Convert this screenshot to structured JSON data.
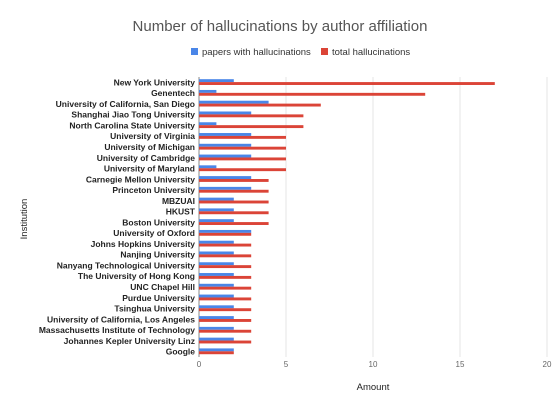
{
  "chart_data": {
    "type": "bar",
    "orientation": "horizontal",
    "title": "Number of hallucinations by author affiliation",
    "xlabel": "Amount",
    "ylabel": "Institution",
    "xlim": [
      0,
      20
    ],
    "xticks": [
      "0",
      "5",
      "10",
      "15",
      "20"
    ],
    "grid": true,
    "legend_position": "top",
    "categories": [
      "New York University",
      "Genentech",
      "University of California, San Diego",
      "Shanghai Jiao Tong University",
      "North Carolina State University",
      "University of Virginia",
      "University of Michigan",
      "University of Cambridge",
      "University of Maryland",
      "Carnegie Mellon University",
      "Princeton University",
      "MBZUAI",
      "HKUST",
      "Boston University",
      "University of Oxford",
      "Johns Hopkins University",
      "Nanjing University",
      "Nanyang Technological University",
      "The University of Hong Kong",
      "UNC Chapel Hill",
      "Purdue University",
      "Tsinghua University",
      "University of California, Los Angeles",
      "Massachusetts Institute of Technology",
      "Johannes Kepler University Linz",
      "Google"
    ],
    "series": [
      {
        "name": "papers with hallucinations",
        "color": "#4a86e8",
        "values": [
          2,
          1,
          4,
          3,
          1,
          3,
          3,
          3,
          1,
          3,
          3,
          2,
          2,
          2,
          3,
          2,
          2,
          2,
          2,
          2,
          2,
          2,
          2,
          2,
          2,
          2
        ]
      },
      {
        "name": "total hallucinations",
        "color": "#db4437",
        "values": [
          17,
          13,
          7,
          6,
          6,
          5,
          5,
          5,
          5,
          4,
          4,
          4,
          4,
          4,
          3,
          3,
          3,
          3,
          3,
          3,
          3,
          3,
          3,
          3,
          3,
          2
        ]
      }
    ]
  }
}
